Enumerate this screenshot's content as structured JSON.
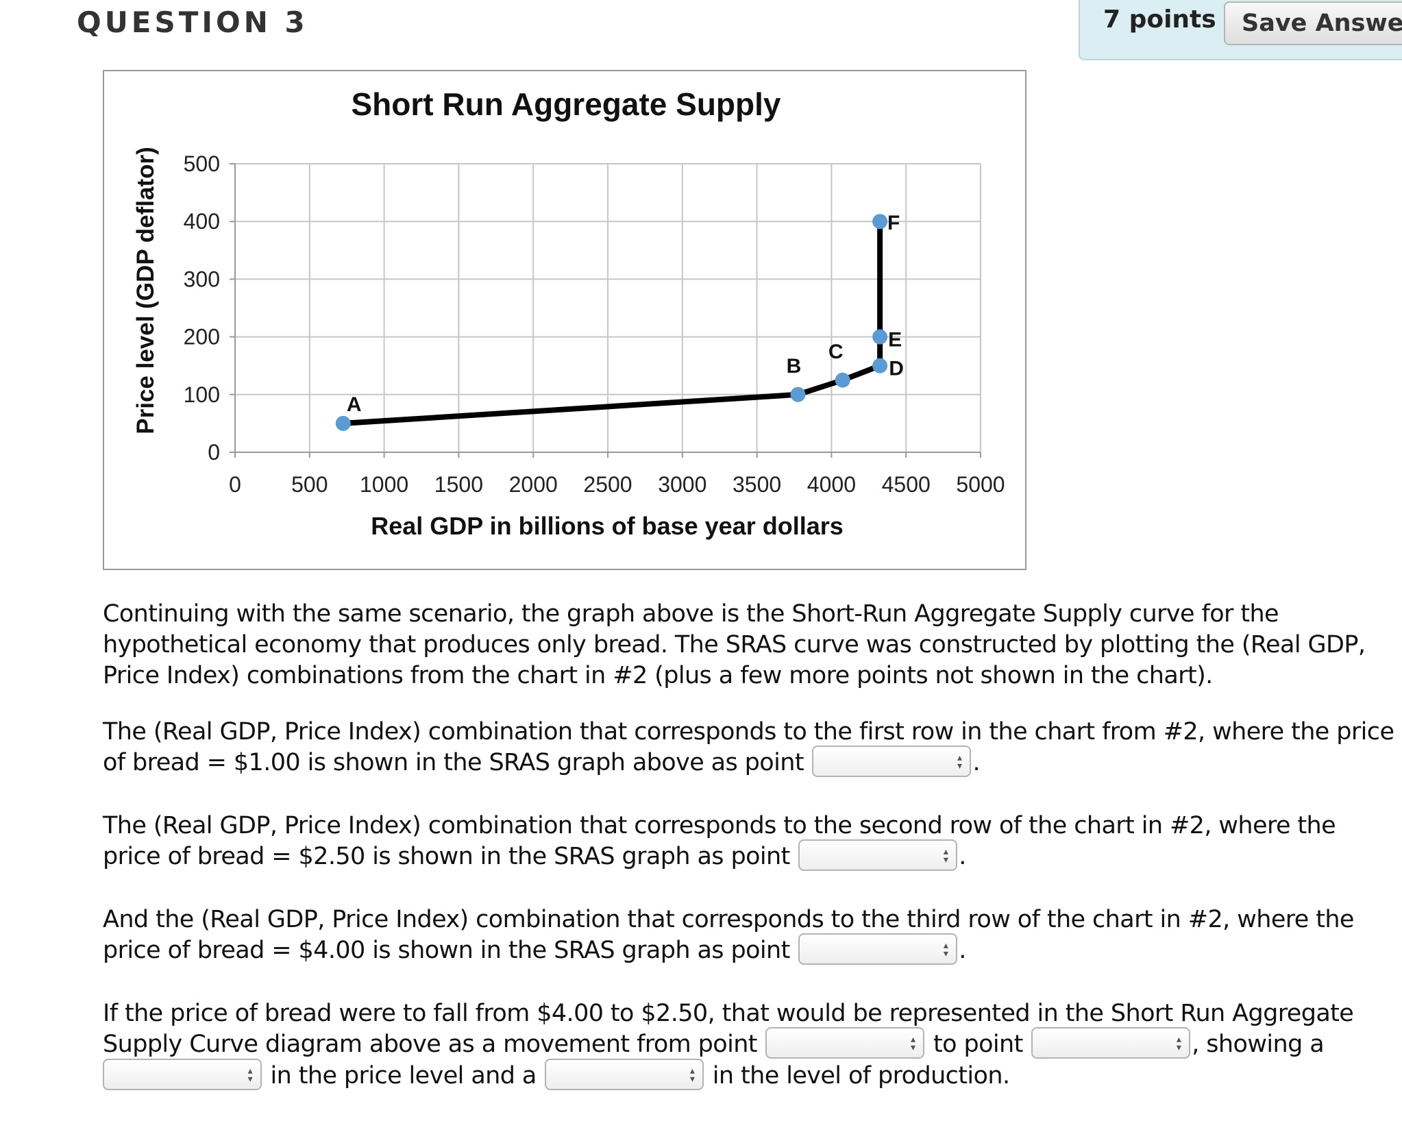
{
  "header": {
    "question_label": "QUESTION 3",
    "points": "7 points",
    "save_label": "Save Answer"
  },
  "chart_data": {
    "type": "line",
    "title": "Short Run Aggregate Supply",
    "xlabel": "Real GDP in billions of base year dollars",
    "ylabel": "Price level (GDP deflator)",
    "xlim": [
      0,
      5000
    ],
    "ylim": [
      0,
      500
    ],
    "x_ticks": [
      0,
      500,
      1000,
      1500,
      2000,
      2500,
      3000,
      3500,
      4000,
      4500,
      5000
    ],
    "y_ticks": [
      0,
      100,
      200,
      300,
      400,
      500
    ],
    "grid": true,
    "series": [
      {
        "color": "#000000",
        "marker_color": "#5b9bd5",
        "points": [
          {
            "label": "A",
            "x": 725,
            "y": 50
          },
          {
            "label": "B",
            "x": 3775,
            "y": 100
          },
          {
            "label": "C",
            "x": 4075,
            "y": 125
          },
          {
            "label": "D",
            "x": 4325,
            "y": 150
          },
          {
            "label": "E",
            "x": 4325,
            "y": 200
          },
          {
            "label": "F",
            "x": 4325,
            "y": 400
          }
        ]
      }
    ]
  },
  "paragraphs": {
    "intro": [
      "Continuing with the same scenario, the graph above is the Short-Run Aggregate Supply curve for the",
      "hypothetical economy that produces only bread. The SRAS curve was constructed by plotting the (Real GDP,",
      "Price Index) combinations from the chart in #2 (plus a few more points not shown in the chart)."
    ],
    "q1": {
      "line1": "The (Real GDP, Price Index) combination that corresponds to the first row in the chart from #2, where the price",
      "line2": "of bread = $1.00 is shown in the SRAS graph above as point",
      "end": "."
    },
    "q2": {
      "line1": "The (Real GDP, Price Index) combination that corresponds to the second row of the chart in #2, where the",
      "line2": "price of bread = $2.50 is shown in the SRAS graph as point",
      "end": "."
    },
    "q3": {
      "line1": "And the (Real GDP, Price Index) combination that corresponds to the third row of the chart in #2, where the",
      "line2": "price of bread = $4.00 is shown in the SRAS graph as point",
      "end": "."
    },
    "q4": {
      "line1_a": "If the price of bread were to fall from $4.00 to $2.50, that would be represented in the Short Run Aggregate",
      "line2_a": "Supply Curve diagram above as a movement from point",
      "line2_b": "to point",
      "line2_c": ", showing a",
      "line3_a": "in the price level and a",
      "line3_b": "in the level of production."
    }
  },
  "selects": {
    "q1_point": "",
    "q2_point": "",
    "q3_point": "",
    "q4_from": "",
    "q4_to": "",
    "q4_price_change": "",
    "q4_production_change": ""
  }
}
